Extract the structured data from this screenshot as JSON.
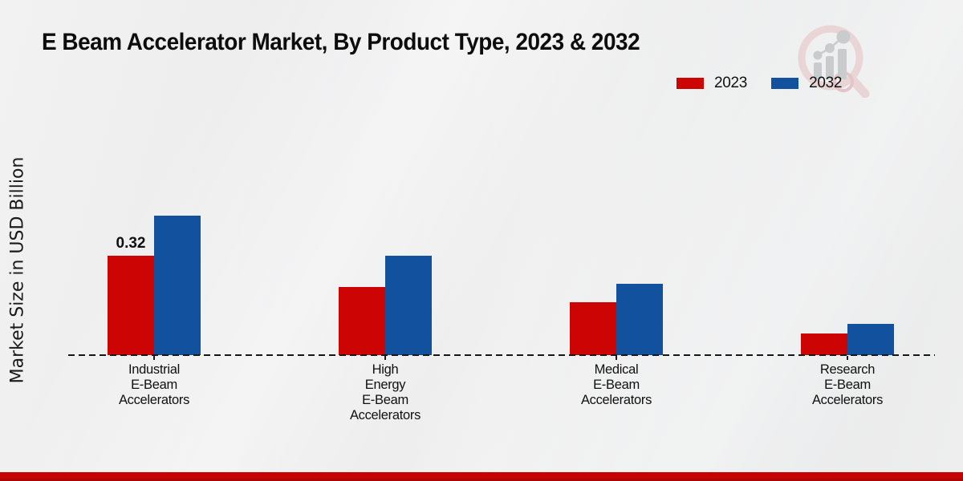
{
  "title": "E Beam Accelerator Market, By Product Type, 2023 & 2032",
  "y_axis_label": "Market Size in USD Billion",
  "legend": {
    "items": [
      {
        "label": "2023",
        "color": "#cc0404"
      },
      {
        "label": "2032",
        "color": "#11519e"
      }
    ]
  },
  "chart_data": {
    "type": "bar",
    "title": "E Beam Accelerator Market, By Product Type, 2023 & 2032",
    "xlabel": "",
    "ylabel": "Market Size in USD Billion",
    "ylim": [
      0,
      0.5
    ],
    "grid": false,
    "legend_position": "top-right",
    "baseline_style": "dashed",
    "categories": [
      "Industrial E-Beam Accelerators",
      "High Energy E-Beam Accelerators",
      "Medical E-Beam Accelerators",
      "Research E-Beam Accelerators"
    ],
    "category_label_lines": [
      [
        "Industrial",
        "E-Beam",
        "Accelerators"
      ],
      [
        "High",
        "Energy",
        "E-Beam",
        "Accelerators"
      ],
      [
        "Medical",
        "E-Beam",
        "Accelerators"
      ],
      [
        "Research",
        "E-Beam",
        "Accelerators"
      ]
    ],
    "series": [
      {
        "name": "2023",
        "color": "#cc0404",
        "values": [
          0.32,
          0.22,
          0.17,
          0.07
        ]
      },
      {
        "name": "2032",
        "color": "#11519e",
        "values": [
          0.45,
          0.32,
          0.23,
          0.1
        ]
      }
    ],
    "value_labels": [
      {
        "series_index": 0,
        "category_index": 0,
        "text": "0.32"
      }
    ]
  },
  "branding": {
    "logo_icon": "magnifier-bar-chart-logo",
    "footer_color": "#c10000"
  }
}
